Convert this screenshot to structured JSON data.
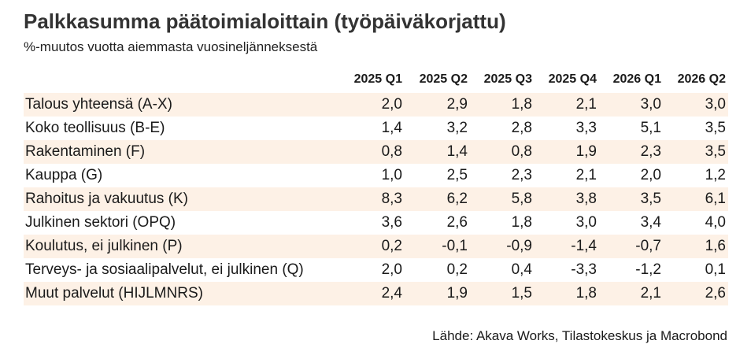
{
  "header": {
    "title": "Palkkasumma päätoimialoittain (työpäiväkorjattu)",
    "subtitle": "%-muutos vuotta aiemmasta vuosineljänneksestä"
  },
  "table": {
    "columns": [
      "2025 Q1",
      "2025 Q2",
      "2025 Q3",
      "2025 Q4",
      "2026 Q1",
      "2026 Q2"
    ],
    "rows": [
      {
        "label": "Talous yhteensä (A-X)",
        "values": [
          "2,0",
          "2,9",
          "1,8",
          "2,1",
          "3,0",
          "3,0"
        ]
      },
      {
        "label": "Koko teollisuus (B-E)",
        "values": [
          "1,4",
          "3,2",
          "2,8",
          "3,3",
          "5,1",
          "3,5"
        ]
      },
      {
        "label": "Rakentaminen (F)",
        "values": [
          "0,8",
          "1,4",
          "0,8",
          "1,9",
          "2,3",
          "3,5"
        ]
      },
      {
        "label": "Kauppa (G)",
        "values": [
          "1,0",
          "2,5",
          "2,3",
          "2,1",
          "2,0",
          "1,2"
        ]
      },
      {
        "label": "Rahoitus ja vakuutus (K)",
        "values": [
          "8,3",
          "6,2",
          "5,8",
          "3,8",
          "3,5",
          "6,1"
        ]
      },
      {
        "label": "Julkinen sektori (OPQ)",
        "values": [
          "3,6",
          "2,6",
          "1,8",
          "3,0",
          "3,4",
          "4,0"
        ]
      },
      {
        "label": "Koulutus, ei julkinen (P)",
        "values": [
          "0,2",
          "-0,1",
          "-0,9",
          "-1,4",
          "-0,7",
          "1,6"
        ]
      },
      {
        "label": "Terveys- ja sosiaalipalvelut, ei julkinen (Q)",
        "values": [
          "2,0",
          "0,2",
          "0,4",
          "-3,3",
          "-1,2",
          "0,1"
        ]
      },
      {
        "label": "Muut palvelut (HIJLMNRS)",
        "values": [
          "2,4",
          "1,9",
          "1,5",
          "1,8",
          "2,1",
          "2,6"
        ]
      }
    ]
  },
  "footer": {
    "source": "Lähde: Akava Works, Tilastokeskus ja Macrobond"
  }
}
